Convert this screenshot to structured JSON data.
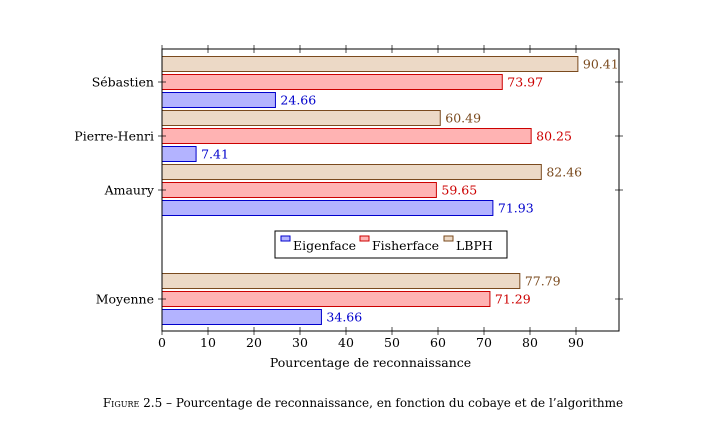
{
  "chart_data": {
    "type": "bar",
    "orientation": "horizontal",
    "categories": [
      "Sébastien",
      "Pierre-Henri",
      "Amaury",
      "Moyenne"
    ],
    "series": [
      {
        "name": "Eigenface",
        "values": [
          24.66,
          7.41,
          71.93,
          34.66
        ],
        "fill": "#b3b3ff",
        "stroke": "#0000cc",
        "label_color": "#0000cc"
      },
      {
        "name": "Fisherface",
        "values": [
          73.97,
          80.25,
          59.65,
          71.29
        ],
        "fill": "#ffb3b3",
        "stroke": "#cc0000",
        "label_color": "#cc0000"
      },
      {
        "name": "LBPH",
        "values": [
          90.41,
          60.49,
          82.46,
          77.79
        ],
        "fill": "#ecd9c6",
        "stroke": "#7a4a1e",
        "label_color": "#7a4a1e"
      }
    ],
    "xlabel": "Pourcentage de reconnaissance",
    "xlim": [
      0,
      100
    ],
    "xticks": [
      0,
      10,
      20,
      30,
      40,
      50,
      60,
      70,
      80,
      90
    ],
    "legend_position": "center",
    "grid": false
  },
  "caption": {
    "prefix": "Figure 2.5",
    "text": " – Pourcentage de reconnaissance, en fonction du cobaye et de l’algorithme"
  }
}
